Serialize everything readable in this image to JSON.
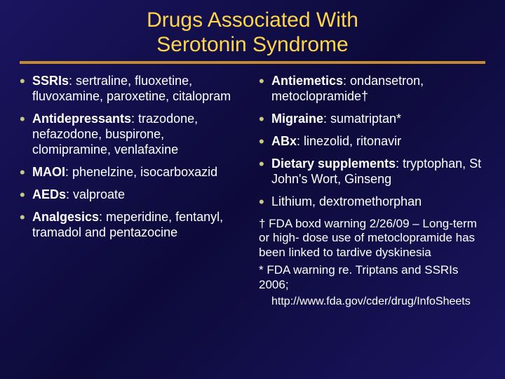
{
  "title_line1": "Drugs Associated With",
  "title_line2": "Serotonin Syndrome",
  "colors": {
    "background_gradient": [
      "#1a1560",
      "#0d0a3a",
      "#1a1560"
    ],
    "title_color": "#ffd54a",
    "rule_color": "#c38b2e",
    "bullet_color": "#c9c980",
    "text_color": "#ffffff"
  },
  "typography": {
    "title_fontsize": 30,
    "body_fontsize": 18,
    "footnote_fontsize": 17,
    "font_family": "Arial"
  },
  "left": [
    {
      "category": "SSRIs",
      "text": ": sertraline, fluoxetine, fluvoxamine, paroxetine, citalopram"
    },
    {
      "category": "Antidepressants",
      "text": ": trazodone, nefazodone, buspirone, clomipramine, venlafaxine"
    },
    {
      "category": "MAOI",
      "text": ": phenelzine, isocarboxazid"
    },
    {
      "category": "AEDs",
      "text": ": valproate"
    },
    {
      "category": "Analgesics",
      "text": ": meperidine, fentanyl, tramadol and pentazocine"
    }
  ],
  "right": [
    {
      "category": "Antiemetics",
      "text": ": ondansetron, metoclopramide†"
    },
    {
      "category": "Migraine",
      "text": ": sumatriptan*"
    },
    {
      "category": "ABx",
      "text": ": linezolid, ritonavir"
    },
    {
      "category": "Dietary supplements",
      "text": ": tryptophan, St John's Wort, Ginseng"
    },
    {
      "category": "",
      "text": "Lithium, dextromethorphan"
    }
  ],
  "footnotes": {
    "f1": "† FDA boxd warning 2/26/09 – Long-term or high- dose use of metoclopramide has been linked to   tardive dyskinesia",
    "f2": "* FDA warning re. Triptans and SSRIs 2006;",
    "url": "http://www.fda.gov/cder/drug/InfoSheets"
  }
}
